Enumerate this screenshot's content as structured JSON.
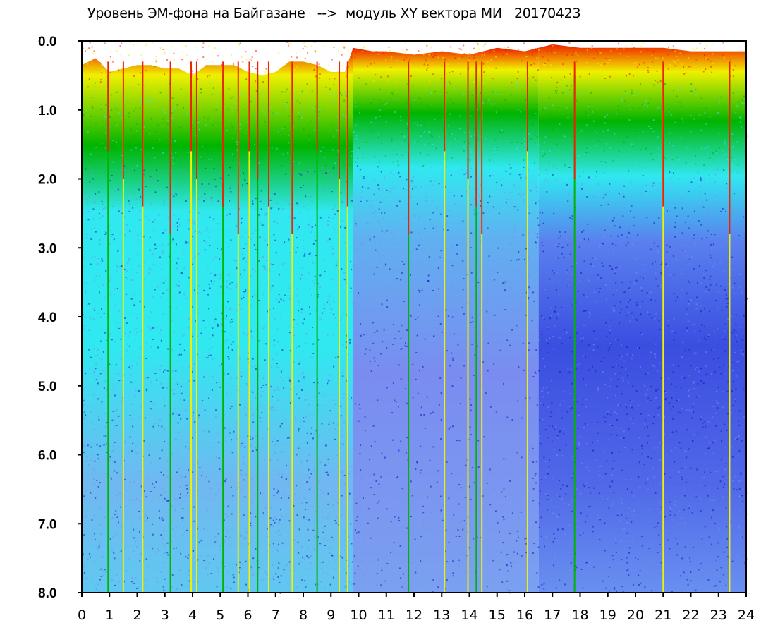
{
  "chart_data": {
    "type": "heatmap",
    "title": "Уровень ЭМ-фона на Байгазане   -->  модуль XY вектора МИ   20170423",
    "xlabel": "",
    "ylabel": "",
    "x_ticks": [
      "0",
      "1",
      "2",
      "3",
      "4",
      "5",
      "6",
      "7",
      "8",
      "9",
      "10",
      "11",
      "12",
      "13",
      "14",
      "15",
      "16",
      "17",
      "18",
      "19",
      "20",
      "21",
      "22",
      "23",
      "24"
    ],
    "y_ticks": [
      "0.0",
      "1.0",
      "2.0",
      "3.0",
      "4.0",
      "5.0",
      "6.0",
      "7.0",
      "8.0"
    ],
    "xlim": [
      0,
      24
    ],
    "ylim": [
      0,
      8
    ],
    "y_inverted": true,
    "grid": false,
    "colors": [
      "#1010c8",
      "#7a8cf0",
      "#30e8f0",
      "#00b400",
      "#f0f000",
      "#f02000"
    ],
    "dense_top_boundary": [
      [
        0.0,
        0.35
      ],
      [
        0.5,
        0.25
      ],
      [
        1.0,
        0.45
      ],
      [
        1.5,
        0.4
      ],
      [
        2.0,
        0.35
      ],
      [
        2.5,
        0.35
      ],
      [
        3.0,
        0.4
      ],
      [
        3.5,
        0.4
      ],
      [
        4.0,
        0.5
      ],
      [
        4.5,
        0.35
      ],
      [
        5.0,
        0.35
      ],
      [
        5.5,
        0.35
      ],
      [
        6.0,
        0.45
      ],
      [
        6.5,
        0.5
      ],
      [
        7.0,
        0.45
      ],
      [
        7.5,
        0.3
      ],
      [
        8.0,
        0.3
      ],
      [
        8.5,
        0.35
      ],
      [
        9.0,
        0.45
      ],
      [
        9.5,
        0.45
      ],
      [
        9.8,
        0.1
      ],
      [
        10.5,
        0.15
      ],
      [
        11.0,
        0.15
      ],
      [
        12.0,
        0.2
      ],
      [
        13.0,
        0.15
      ],
      [
        14.0,
        0.2
      ],
      [
        15.0,
        0.1
      ],
      [
        16.0,
        0.15
      ],
      [
        16.5,
        0.1
      ],
      [
        17.0,
        0.05
      ],
      [
        18.0,
        0.1
      ],
      [
        19.0,
        0.1
      ],
      [
        20.0,
        0.1
      ],
      [
        21.0,
        0.1
      ],
      [
        22.0,
        0.15
      ],
      [
        23.0,
        0.15
      ],
      [
        24.0,
        0.15
      ]
    ],
    "notable_spikes_hours": [
      0.95,
      1.5,
      2.2,
      3.2,
      3.95,
      4.15,
      5.1,
      5.65,
      6.05,
      6.35,
      6.75,
      7.6,
      8.5,
      9.3,
      9.6,
      11.8,
      13.1,
      13.95,
      14.25,
      14.45,
      16.1,
      17.8,
      21.0,
      23.4
    ]
  }
}
